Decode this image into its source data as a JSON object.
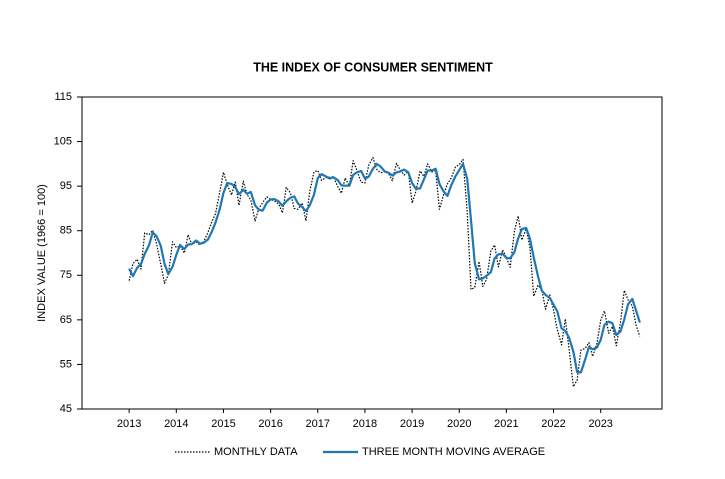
{
  "chart_data": {
    "type": "line",
    "title": "THE INDEX OF CONSUMER SENTIMENT",
    "y_label": "INDEX VALUE (1966 = 100)",
    "x": [
      2013,
      2013.08,
      2013.17,
      2013.25,
      2013.33,
      2013.42,
      2013.5,
      2013.58,
      2013.67,
      2013.75,
      2013.83,
      2013.92,
      2014,
      2014.08,
      2014.17,
      2014.25,
      2014.33,
      2014.42,
      2014.5,
      2014.58,
      2014.67,
      2014.75,
      2014.83,
      2014.92,
      2015,
      2015.08,
      2015.17,
      2015.25,
      2015.33,
      2015.42,
      2015.5,
      2015.58,
      2015.67,
      2015.75,
      2015.83,
      2015.92,
      2016,
      2016.08,
      2016.17,
      2016.25,
      2016.33,
      2016.42,
      2016.5,
      2016.58,
      2016.67,
      2016.75,
      2016.83,
      2016.92,
      2017,
      2017.08,
      2017.17,
      2017.25,
      2017.33,
      2017.42,
      2017.5,
      2017.58,
      2017.67,
      2017.75,
      2017.83,
      2017.92,
      2018,
      2018.08,
      2018.17,
      2018.25,
      2018.33,
      2018.42,
      2018.5,
      2018.58,
      2018.67,
      2018.75,
      2018.83,
      2018.92,
      2019,
      2019.08,
      2019.17,
      2019.25,
      2019.33,
      2019.42,
      2019.5,
      2019.58,
      2019.67,
      2019.75,
      2019.83,
      2019.92,
      2020,
      2020.08,
      2020.17,
      2020.25,
      2020.33,
      2020.42,
      2020.5,
      2020.58,
      2020.67,
      2020.75,
      2020.83,
      2020.92,
      2021,
      2021.08,
      2021.17,
      2021.25,
      2021.33,
      2021.42,
      2021.5,
      2021.58,
      2021.67,
      2021.75,
      2021.83,
      2021.92,
      2022,
      2022.08,
      2022.17,
      2022.25,
      2022.33,
      2022.42,
      2022.5,
      2022.58,
      2022.67,
      2022.75,
      2022.83,
      2022.92,
      2023,
      2023.08,
      2023.17,
      2023.25,
      2023.33,
      2023.42,
      2023.5,
      2023.58,
      2023.67,
      2023.75,
      2023.83
    ],
    "series": [
      {
        "name": "MONTHLY DATA",
        "color": "#000000",
        "dash": "dotted",
        "values": [
          73.8,
          77.6,
          78.6,
          76.4,
          84.5,
          84.1,
          85.1,
          82.1,
          77.5,
          73.2,
          75.1,
          82.5,
          81.2,
          81.6,
          80.0,
          84.1,
          81.9,
          82.5,
          81.8,
          82.5,
          84.6,
          86.9,
          88.8,
          93.6,
          98.1,
          95.4,
          93.0,
          95.9,
          90.7,
          96.1,
          93.1,
          91.9,
          87.2,
          90.0,
          91.3,
          92.6,
          92.0,
          91.7,
          91.0,
          89.0,
          94.7,
          93.5,
          90.0,
          89.8,
          91.2,
          87.2,
          93.8,
          98.2,
          98.5,
          96.3,
          96.9,
          97.0,
          97.1,
          95.0,
          93.4,
          96.8,
          95.1,
          100.7,
          98.5,
          95.9,
          95.7,
          99.7,
          101.4,
          98.8,
          98.0,
          98.2,
          97.9,
          96.2,
          100.1,
          98.6,
          97.5,
          98.3,
          91.2,
          93.8,
          98.4,
          97.2,
          100.0,
          98.2,
          98.4,
          89.8,
          93.2,
          95.5,
          96.8,
          99.3,
          99.8,
          101.0,
          89.1,
          71.8,
          72.3,
          78.1,
          72.5,
          74.1,
          80.4,
          81.8,
          76.9,
          80.7,
          79.0,
          76.8,
          84.9,
          88.3,
          82.9,
          85.5,
          81.2,
          70.3,
          72.8,
          71.7,
          67.4,
          70.6,
          67.2,
          62.8,
          59.4,
          65.2,
          58.4,
          50.0,
          51.5,
          58.2,
          58.6,
          59.9,
          56.8,
          59.7,
          64.9,
          67.0,
          62.0,
          63.5,
          59.2,
          64.4,
          71.6,
          69.5,
          68.1,
          63.8,
          61.3
        ]
      },
      {
        "name": "THREE MONTH MOVING AVERAGE",
        "color": "#1f77b4",
        "dash": "solid",
        "values": [
          76.5,
          74.8,
          76.7,
          77.5,
          79.8,
          81.7,
          84.6,
          83.8,
          81.6,
          77.6,
          75.3,
          76.9,
          79.6,
          81.8,
          80.9,
          81.9,
          82.0,
          82.8,
          82.1,
          82.3,
          83.0,
          84.7,
          86.8,
          89.8,
          93.5,
          95.7,
          95.5,
          94.8,
          93.2,
          94.2,
          93.3,
          93.7,
          90.7,
          89.7,
          89.5,
          91.3,
          92.0,
          92.1,
          91.6,
          90.6,
          91.6,
          92.4,
          92.7,
          91.1,
          90.3,
          89.4,
          90.7,
          93.1,
          96.8,
          97.7,
          97.2,
          96.7,
          97.0,
          96.4,
          95.2,
          95.1,
          95.1,
          97.5,
          98.1,
          98.4,
          96.7,
          97.1,
          98.9,
          100.0,
          99.4,
          98.3,
          98.0,
          97.4,
          98.1,
          98.3,
          98.7,
          98.1,
          95.7,
          94.4,
          94.5,
          96.5,
          98.5,
          98.5,
          98.9,
          95.5,
          93.8,
          92.8,
          95.2,
          97.2,
          98.6,
          100.0,
          96.6,
          87.3,
          77.7,
          74.1,
          74.3,
          74.9,
          75.7,
          78.8,
          79.7,
          79.8,
          78.9,
          78.8,
          80.2,
          83.3,
          85.4,
          85.6,
          83.2,
          79.0,
          74.8,
          71.6,
          70.6,
          69.9,
          68.4,
          66.9,
          63.1,
          62.5,
          61.0,
          57.9,
          53.3,
          53.2,
          56.1,
          58.9,
          58.4,
          58.8,
          60.5,
          63.9,
          64.6,
          64.2,
          61.6,
          62.4,
          65.1,
          68.5,
          69.7,
          67.1,
          64.4
        ]
      }
    ],
    "xlim": [
      2012,
      2024.3
    ],
    "xticks": [
      2013,
      2014,
      2015,
      2016,
      2017,
      2018,
      2019,
      2020,
      2021,
      2022,
      2023
    ],
    "ylim": [
      45,
      115
    ],
    "yticks": [
      45,
      55,
      65,
      75,
      85,
      95,
      105,
      115
    ],
    "grid": false,
    "legend": "bottom"
  }
}
